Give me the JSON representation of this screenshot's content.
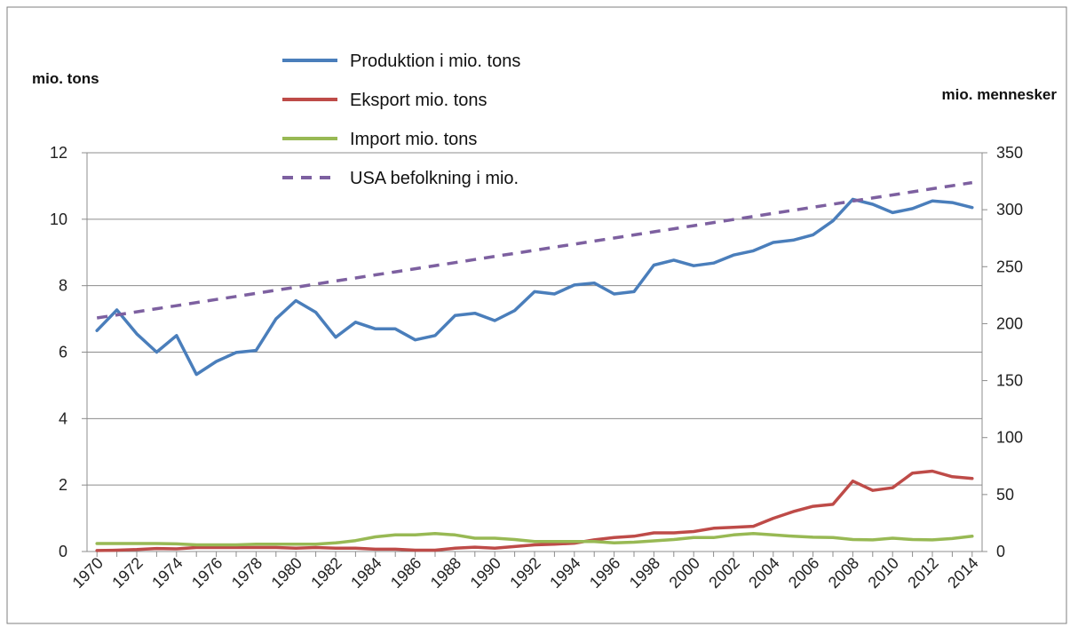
{
  "chart_data": {
    "type": "line",
    "title": "",
    "ylabel_left": "mio. tons",
    "ylabel_right": "mio. mennesker",
    "xlabel": "",
    "grid": true,
    "legend_position": "top-left",
    "ylim_left": [
      0,
      12
    ],
    "yticks_left": [
      "0",
      "2",
      "4",
      "6",
      "8",
      "10",
      "12"
    ],
    "ylim_right": [
      0,
      350
    ],
    "yticks_right": [
      "0",
      "50",
      "100",
      "150",
      "200",
      "250",
      "300",
      "350"
    ],
    "xticks": [
      "1970",
      "1972",
      "1974",
      "1976",
      "1978",
      "1980",
      "1982",
      "1984",
      "1986",
      "1988",
      "1990",
      "1992",
      "1994",
      "1996",
      "1998",
      "2000",
      "2002",
      "2004",
      "2006",
      "2008",
      "2010",
      "2012",
      "2014"
    ],
    "x": [
      1970,
      1971,
      1972,
      1973,
      1974,
      1975,
      1976,
      1977,
      1978,
      1979,
      1980,
      1981,
      1982,
      1983,
      1984,
      1985,
      1986,
      1987,
      1988,
      1989,
      1990,
      1991,
      1992,
      1993,
      1994,
      1995,
      1996,
      1997,
      1998,
      1999,
      2000,
      2001,
      2002,
      2003,
      2004,
      2005,
      2006,
      2007,
      2008,
      2009,
      2010,
      2011,
      2012,
      2013,
      2014
    ],
    "series": [
      {
        "name": "Produktion i mio. tons",
        "axis": "left",
        "color": "#4A7EBB",
        "style": "solid",
        "values": [
          6.65,
          7.27,
          6.55,
          6.0,
          6.5,
          5.33,
          5.72,
          5.99,
          6.05,
          7.0,
          7.55,
          7.2,
          6.45,
          6.9,
          6.7,
          6.7,
          6.37,
          6.5,
          7.1,
          7.17,
          6.95,
          7.25,
          7.82,
          7.75,
          8.02,
          8.08,
          7.75,
          7.82,
          8.62,
          8.77,
          8.6,
          8.68,
          8.92,
          9.05,
          9.3,
          9.37,
          9.53,
          9.95,
          10.6,
          10.45,
          10.2,
          10.32,
          10.55,
          10.5,
          10.35
        ]
      },
      {
        "name": "Eksport mio. tons",
        "axis": "left",
        "color": "#BE4B48",
        "style": "solid",
        "values": [
          0.03,
          0.04,
          0.06,
          0.09,
          0.08,
          0.12,
          0.12,
          0.12,
          0.12,
          0.12,
          0.1,
          0.12,
          0.1,
          0.1,
          0.07,
          0.07,
          0.04,
          0.04,
          0.1,
          0.13,
          0.1,
          0.15,
          0.2,
          0.22,
          0.25,
          0.35,
          0.42,
          0.46,
          0.56,
          0.56,
          0.6,
          0.7,
          0.73,
          0.76,
          1.0,
          1.2,
          1.36,
          1.42,
          2.12,
          1.84,
          1.92,
          2.36,
          2.42,
          2.25,
          2.2
        ]
      },
      {
        "name": "Import mio. tons",
        "axis": "left",
        "color": "#98B954",
        "style": "solid",
        "values": [
          0.24,
          0.24,
          0.24,
          0.24,
          0.23,
          0.2,
          0.2,
          0.2,
          0.22,
          0.22,
          0.22,
          0.22,
          0.26,
          0.33,
          0.44,
          0.5,
          0.5,
          0.54,
          0.5,
          0.4,
          0.4,
          0.36,
          0.3,
          0.3,
          0.3,
          0.3,
          0.26,
          0.28,
          0.32,
          0.36,
          0.42,
          0.42,
          0.5,
          0.54,
          0.5,
          0.46,
          0.43,
          0.42,
          0.36,
          0.35,
          0.4,
          0.36,
          0.35,
          0.39,
          0.46
        ]
      },
      {
        "name": "USA befolkning i mio.",
        "axis": "right",
        "color": "#7D60A0",
        "style": "dashed",
        "values": [
          205,
          207.7,
          210.4,
          213.1,
          215.8,
          218.5,
          221.2,
          223.9,
          226.6,
          229.3,
          232,
          234.7,
          237.4,
          240.1,
          242.8,
          245.5,
          248.2,
          250.9,
          253.6,
          256.3,
          259,
          261.7,
          264.4,
          267.1,
          269.8,
          272.5,
          275.2,
          277.9,
          280.6,
          283.3,
          286,
          288.7,
          291.4,
          294.1,
          296.8,
          299.5,
          302.2,
          304.9,
          307.6,
          310.3,
          313,
          315.7,
          318.4,
          321.1,
          323.8
        ]
      }
    ]
  }
}
